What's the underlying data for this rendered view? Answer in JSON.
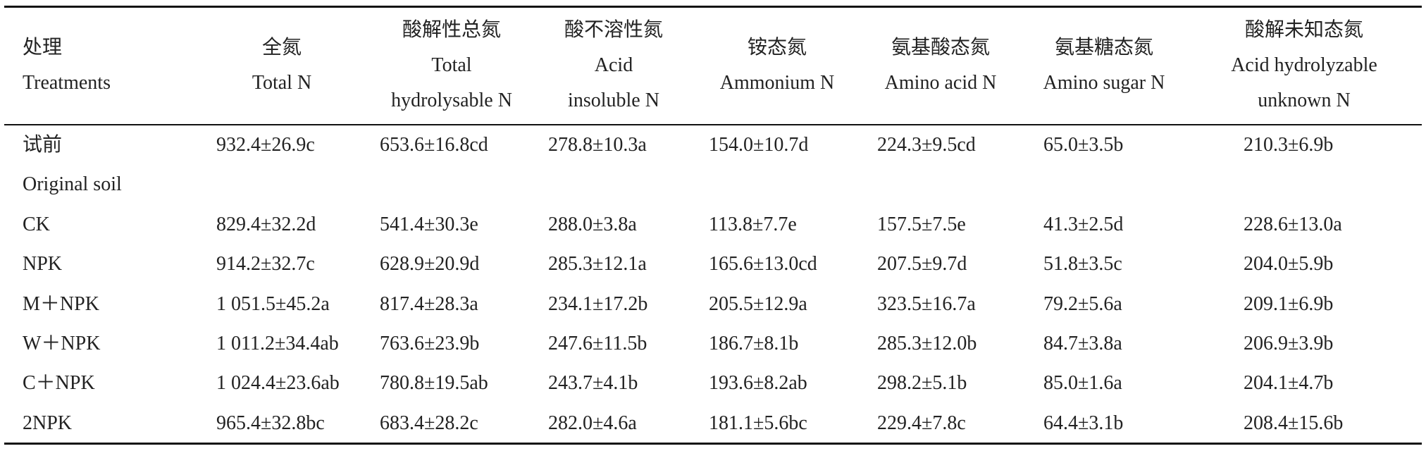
{
  "table": {
    "columns": [
      {
        "zh": "处理",
        "en": [
          "Treatments"
        ]
      },
      {
        "zh": "全氮",
        "en": [
          "Total N"
        ]
      },
      {
        "zh": "酸解性总氮",
        "en": [
          "Total",
          "hydrolysable N"
        ]
      },
      {
        "zh": "酸不溶性氮",
        "en": [
          "Acid",
          "insoluble N"
        ]
      },
      {
        "zh": "铵态氮",
        "en": [
          "Ammonium N"
        ]
      },
      {
        "zh": "氨基酸态氮",
        "en": [
          "Amino acid N"
        ]
      },
      {
        "zh": "氨基糖态氮",
        "en": [
          "Amino sugar N"
        ]
      },
      {
        "zh": "酸解未知态氮",
        "en": [
          "Acid hydrolyzable",
          "unknown N"
        ]
      }
    ],
    "rows": [
      {
        "treatment": [
          "试前",
          "Original soil"
        ],
        "values": [
          "932.4±26.9c",
          "653.6±16.8cd",
          "278.8±10.3a",
          "154.0±10.7d",
          "224.3±9.5cd",
          "65.0±3.5b",
          "210.3±6.9b"
        ]
      },
      {
        "treatment": [
          "CK"
        ],
        "values": [
          "829.4±32.2d",
          "541.4±30.3e",
          "288.0±3.8a",
          "113.8±7.7e",
          "157.5±7.5e",
          "41.3±2.5d",
          "228.6±13.0a"
        ]
      },
      {
        "treatment": [
          "NPK"
        ],
        "values": [
          "914.2±32.7c",
          "628.9±20.9d",
          "285.3±12.1a",
          "165.6±13.0cd",
          "207.5±9.7d",
          "51.8±3.5c",
          "204.0±5.9b"
        ]
      },
      {
        "treatment": [
          "M＋NPK"
        ],
        "values": [
          "1 051.5±45.2a",
          "817.4±28.3a",
          "234.1±17.2b",
          "205.5±12.9a",
          "323.5±16.7a",
          "79.2±5.6a",
          "209.1±6.9b"
        ]
      },
      {
        "treatment": [
          "W＋NPK"
        ],
        "values": [
          "1 011.2±34.4ab",
          "763.6±23.9b",
          "247.6±11.5b",
          "186.7±8.1b",
          "285.3±12.0b",
          "84.7±3.8a",
          "206.9±3.9b"
        ]
      },
      {
        "treatment": [
          "C＋NPK"
        ],
        "values": [
          "1 024.4±23.6ab",
          "780.8±19.5ab",
          "243.7±4.1b",
          "193.6±8.2ab",
          "298.2±5.1b",
          "85.0±1.6a",
          "204.1±4.7b"
        ]
      },
      {
        "treatment": [
          "2NPK"
        ],
        "values": [
          "965.4±32.8bc",
          "683.4±28.2c",
          "282.0±4.6a",
          "181.1±5.6bc",
          "229.4±7.8c",
          "64.4±3.1b",
          "208.4±15.6b"
        ]
      }
    ]
  }
}
